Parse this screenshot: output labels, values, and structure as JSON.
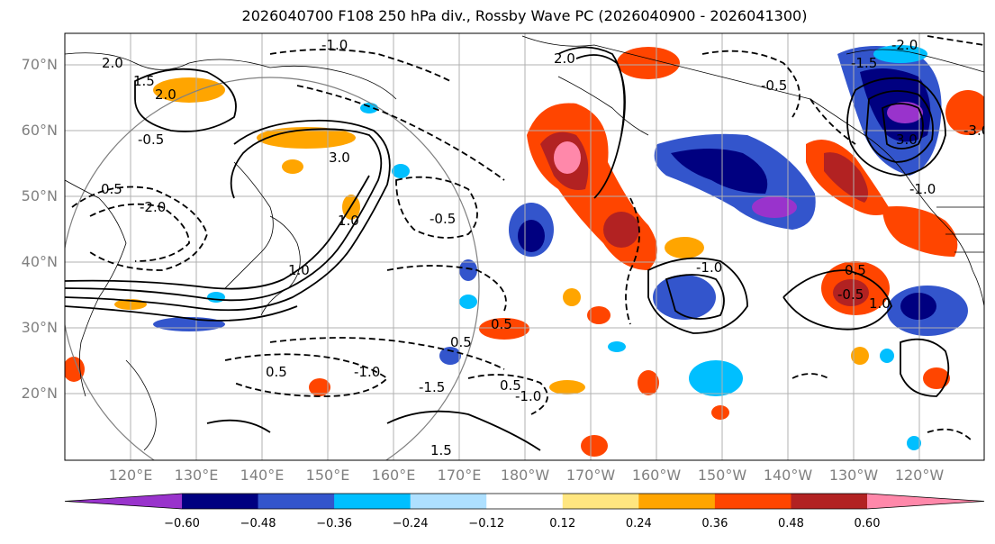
{
  "title": "2026040700 F108 250 hPa div., Rossby Wave PC (2026040900 - 2026041300)",
  "lat_labels": [
    "70°N",
    "60°N",
    "50°N",
    "40°N",
    "30°N",
    "20°N"
  ],
  "lon_labels": [
    "120°E",
    "130°E",
    "140°E",
    "150°E",
    "160°E",
    "170°E",
    "180°W",
    "170°W",
    "160°W",
    "150°W",
    "140°W",
    "130°W",
    "120°W"
  ],
  "colorbar": {
    "ticks": [
      "−0.60",
      "−0.48",
      "−0.36",
      "−0.24",
      "−0.12",
      "0.12",
      "0.24",
      "0.36",
      "0.48",
      "0.60"
    ],
    "colors": [
      "#9933cc",
      "#000080",
      "#3355cc",
      "#00bfff",
      "#aee0ff",
      "#ffffff",
      "#ffe680",
      "#ffa500",
      "#ff4500",
      "#b22222",
      "#ff88aa"
    ]
  },
  "contour_labels": [
    "2.0",
    "1.5",
    "-1.0",
    "2.0",
    "-0.5",
    "0.5",
    "1.0",
    "-2.0",
    "3.0",
    "-0.5",
    "0.5",
    "-1.0",
    "2.0",
    "-0.5",
    "1.0",
    "-0.5",
    "0.5",
    "-1.0",
    "0.5",
    "-1.5",
    "-1.0",
    "1.5",
    "0.5",
    "1.0",
    "-2.0",
    "-1.0",
    "-1.5",
    "3.0",
    "-3.0",
    "0.5"
  ],
  "fill_colors": {
    "neg_strong": "#9933cc",
    "neg_dark": "#000080",
    "neg_mid": "#3355cc",
    "neg_light": "#00bfff",
    "neg_faint": "#aee0ff",
    "pos_faint": "#ffe680",
    "pos_light": "#ffa500",
    "pos_mid": "#ff4500",
    "pos_dark": "#b22222",
    "pos_strong": "#ff88aa"
  }
}
